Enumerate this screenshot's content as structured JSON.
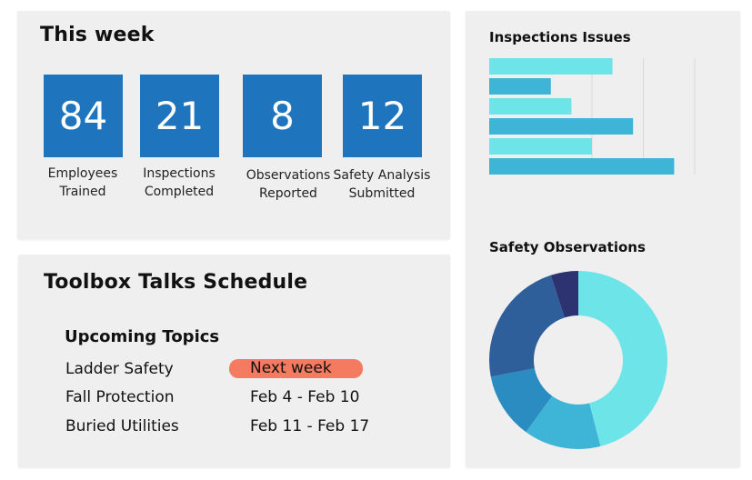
{
  "this_week": {
    "title": "This week",
    "stats": [
      {
        "value": "84",
        "label_line1": "Employees",
        "label_line2": "Trained"
      },
      {
        "value": "21",
        "label_line1": "Inspections",
        "label_line2": "Completed"
      },
      {
        "value": "8",
        "label_line1": "Observations",
        "label_line2": "Reported"
      },
      {
        "value": "12",
        "label_line1": "Safety Analysis",
        "label_line2": "Submitted"
      }
    ],
    "tile_color": "#1f75bd"
  },
  "toolbox": {
    "title": "Toolbox Talks Schedule",
    "subtitle": "Upcoming Topics",
    "topics": [
      {
        "name": "Ladder Safety",
        "when": "Next week",
        "highlight": true
      },
      {
        "name": "Fall Protection",
        "when": "Feb 4 - Feb 10",
        "highlight": false
      },
      {
        "name": "Buried Utilities",
        "when": "Feb 11 - Feb 17",
        "highlight": false
      }
    ],
    "highlight_color": "#f47a60"
  },
  "chart_data": [
    {
      "type": "bar",
      "orientation": "horizontal",
      "title": "Inspections Issues",
      "values": [
        60,
        30,
        40,
        70,
        50,
        90
      ],
      "xlim": [
        0,
        100
      ],
      "colors": [
        "#6ce4e8",
        "#3eb4d6",
        "#6ce4e8",
        "#3eb4d6",
        "#6ce4e8",
        "#3eb4d6"
      ],
      "grid": true
    },
    {
      "type": "pie",
      "donut": true,
      "title": "Safety Observations",
      "values": [
        46,
        14,
        12,
        23,
        5
      ],
      "colors": [
        "#6ce4e8",
        "#3eb4d6",
        "#2a8cc0",
        "#2e5f9a",
        "#2d3370"
      ]
    }
  ]
}
